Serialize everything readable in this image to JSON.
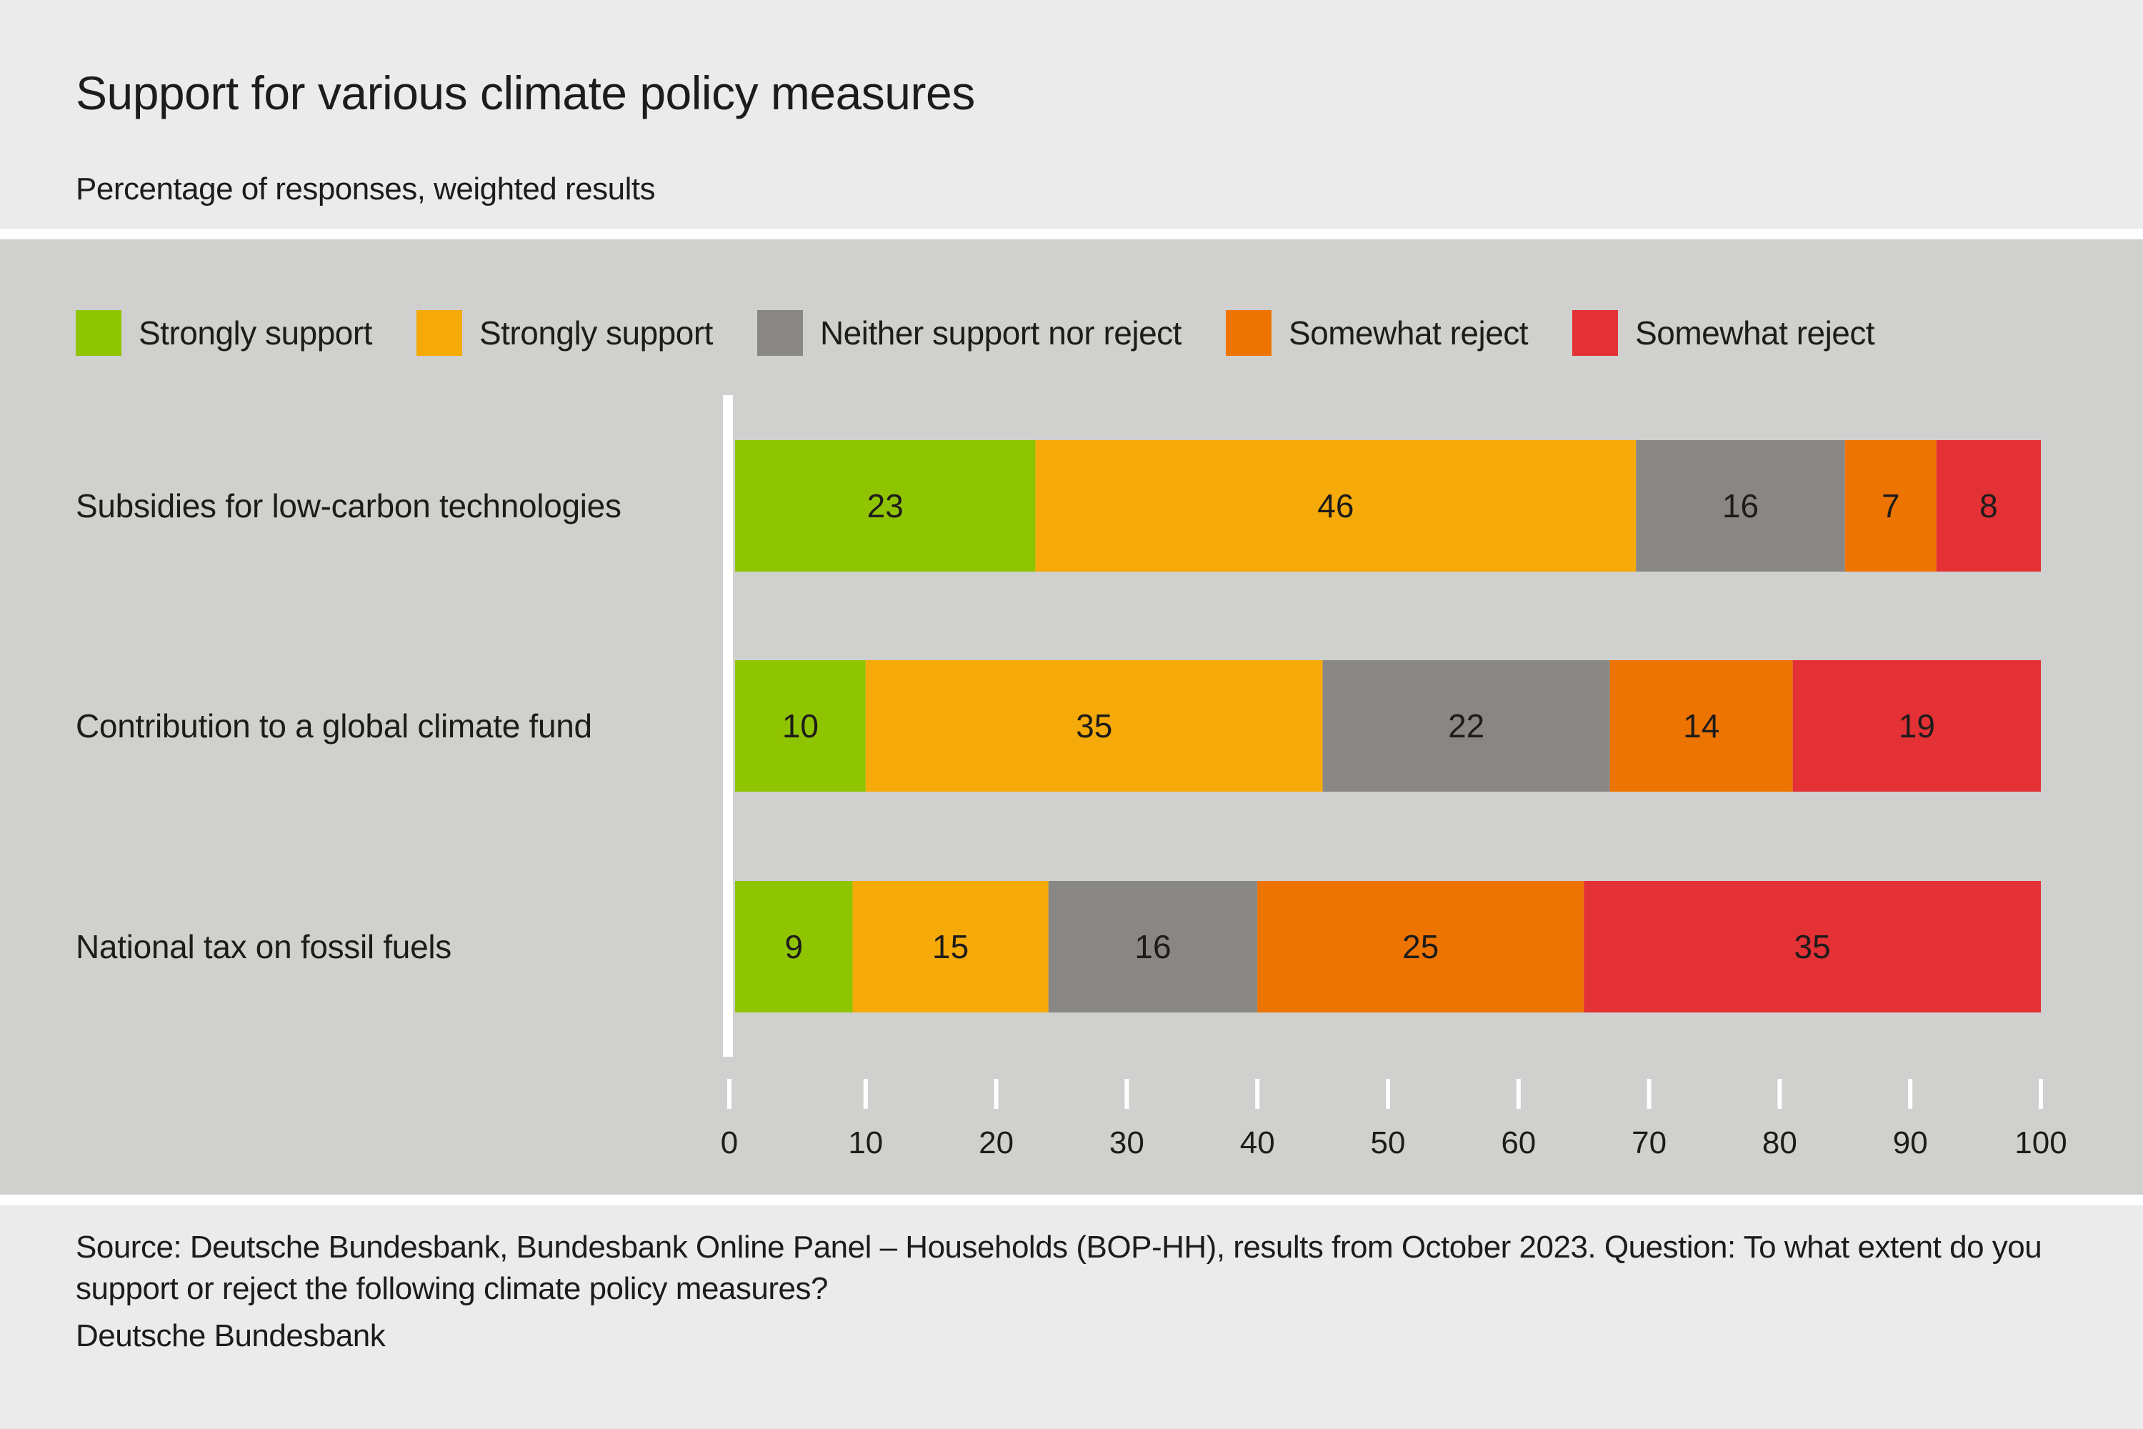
{
  "header": {
    "title": "Support for various climate policy measures",
    "subtitle": "Percentage of responses, weighted results"
  },
  "footer": {
    "source": "Source: Deutsche Bundesbank, Bundesbank Online Panel – Households (BOP-HH), results from October 2023. Question: To what extent do you support or reject the following climate policy measures?",
    "brand": "Deutsche Bundesbank"
  },
  "colors": {
    "header_bg": "#ebebeb",
    "panel_bg": "#d0d0ce",
    "axis": "#ffffff",
    "text": "#1e1c1a"
  },
  "chart_data": {
    "type": "bar",
    "orientation": "horizontal",
    "stacked": true,
    "title": "Support for various climate policy measures",
    "subtitle": "Percentage of responses, weighted results",
    "xlabel": "",
    "ylabel": "",
    "xlim": [
      0,
      100
    ],
    "xticks": [
      0,
      10,
      20,
      30,
      40,
      50,
      60,
      70,
      80,
      90,
      100
    ],
    "grid": false,
    "legend_position": "top",
    "categories": [
      "Subsidies for low-carbon technologies",
      "Contribution to a global climate fund",
      "National tax on fossil fuels"
    ],
    "series": [
      {
        "name": "Strongly support",
        "color": "#8fc400",
        "values": [
          23,
          10,
          9
        ]
      },
      {
        "name": "Strongly support",
        "color": "#f5aa0a",
        "values": [
          46,
          35,
          15
        ]
      },
      {
        "name": "Neither support nor reject",
        "color": "#898785",
        "values": [
          16,
          22,
          16
        ]
      },
      {
        "name": "Somewhat reject",
        "color": "#ee7402",
        "values": [
          7,
          14,
          25
        ]
      },
      {
        "name": "Somewhat reject",
        "color": "#e33136",
        "values": [
          8,
          19,
          35
        ]
      }
    ]
  }
}
